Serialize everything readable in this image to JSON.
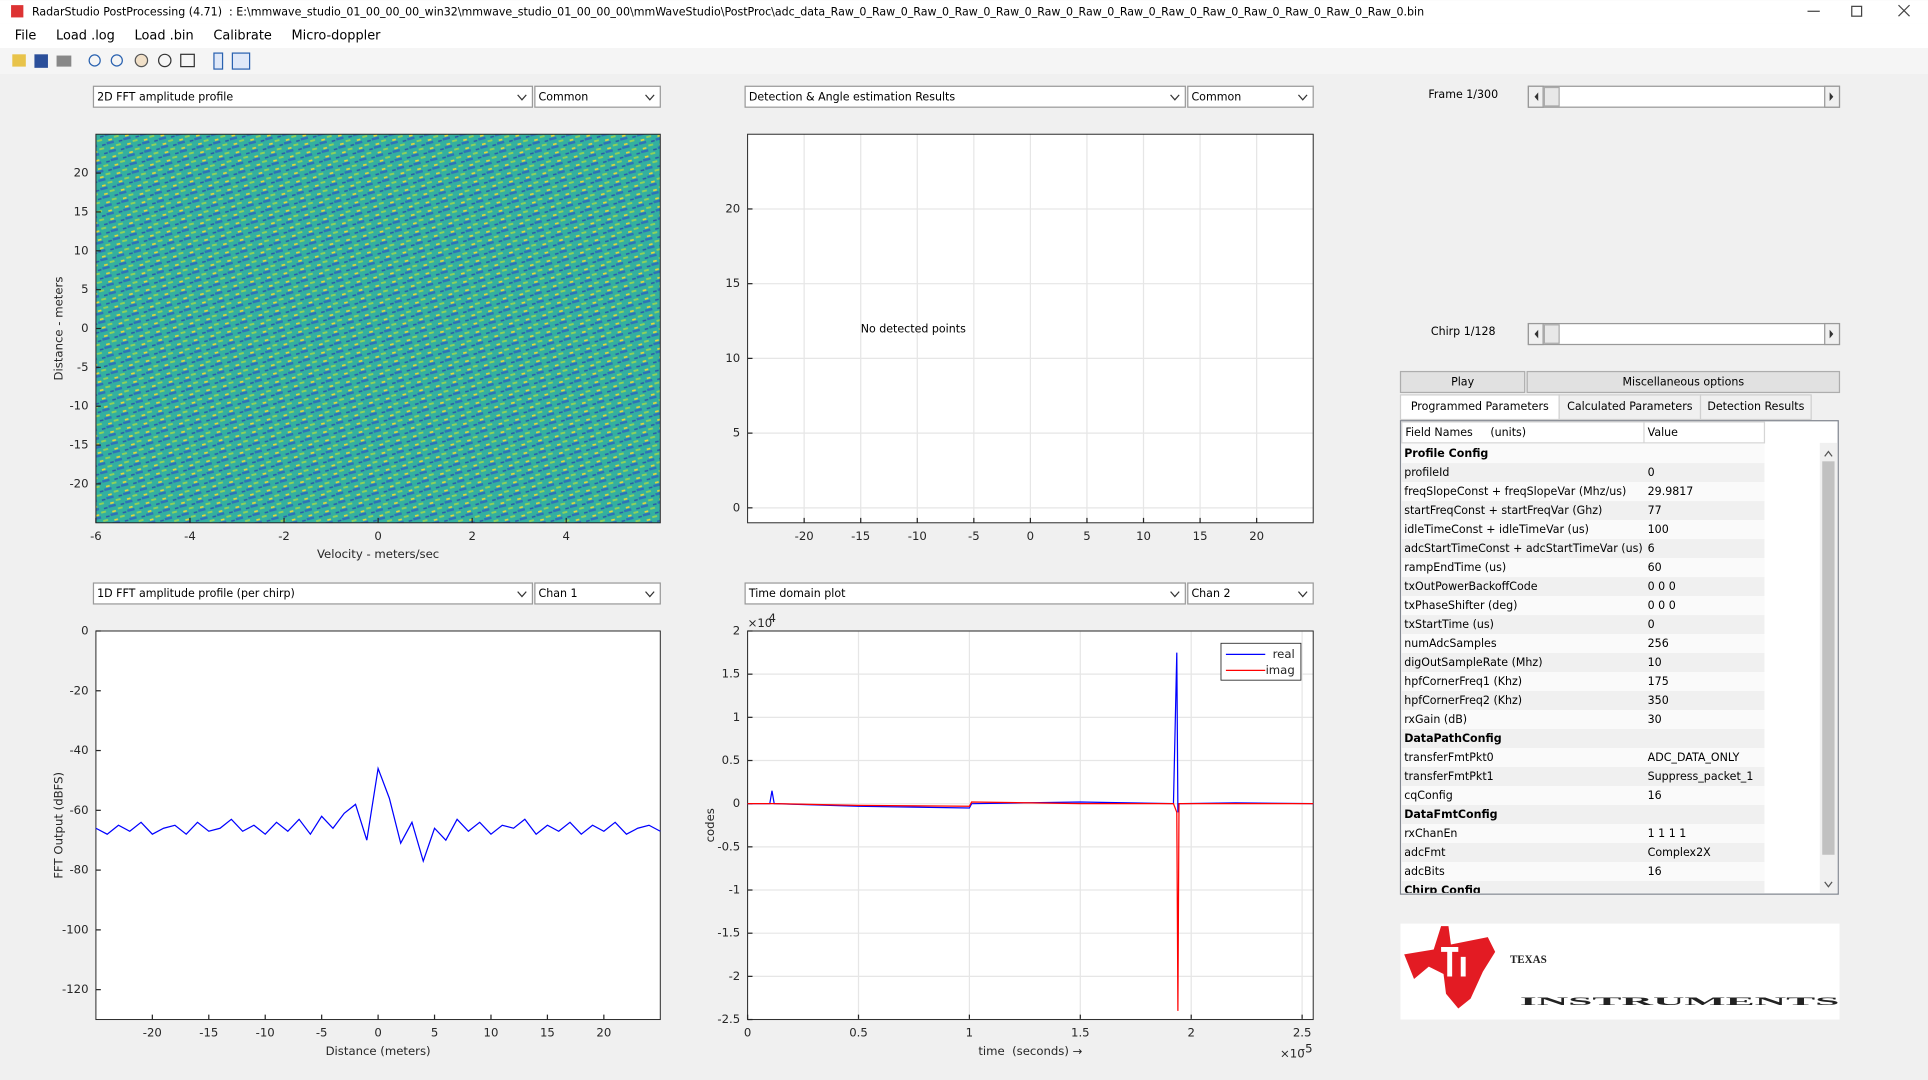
{
  "window": {
    "title": "RadarStudio PostProcessing (4.71)  : E:\\mmwave_studio_01_00_00_00_win32\\mmwave_studio_01_00_00_00\\mmWaveStudio\\PostProc\\adc_data_Raw_0_Raw_0_Raw_0_Raw_0_Raw_0_Raw_0_Raw_0_Raw_0_Raw_0_Raw_0_Raw_0_Raw_0_Raw_0_Raw_0.bin"
  },
  "menu": [
    "File",
    "Load .log",
    "Load .bin",
    "Calibrate",
    "Micro-doppler"
  ],
  "plots": [
    {
      "type": "heatmap",
      "selector": "2D FFT amplitude profile",
      "option": "Common",
      "xlabel": "Velocity - meters/sec",
      "ylabel": "Distance - meters",
      "xlim": [
        -6,
        6
      ],
      "ylim": [
        -25,
        25
      ],
      "xticks": [
        -6,
        -4,
        -2,
        0,
        2,
        4
      ],
      "yticks": [
        -20,
        -15,
        -10,
        -5,
        0,
        5,
        10,
        15,
        20
      ],
      "grid": false
    },
    {
      "type": "scatter",
      "selector": "Detection & Angle estimation Results",
      "option": "Common",
      "annotation": "No detected points",
      "xlim": [
        -25,
        25
      ],
      "ylim": [
        -1,
        25
      ],
      "xticks": [
        -20,
        -15,
        -10,
        -5,
        0,
        5,
        10,
        15,
        20
      ],
      "yticks": [
        0,
        5,
        10,
        15,
        20
      ],
      "grid": true
    },
    {
      "type": "line",
      "selector": "1D FFT amplitude profile (per chirp)",
      "option": "Chan 1",
      "xlabel": "Distance (meters)",
      "ylabel": "FFT Output (dBFS)",
      "xlim": [
        -25,
        25
      ],
      "ylim": [
        -130,
        0
      ],
      "xticks": [
        -20,
        -15,
        -10,
        -5,
        0,
        5,
        10,
        15,
        20
      ],
      "yticks": [
        -120,
        -100,
        -80,
        -60,
        -40,
        -20,
        0
      ],
      "grid": false,
      "x": [
        -25,
        -24,
        -23,
        -22,
        -21,
        -20,
        -19,
        -18,
        -17,
        -16,
        -15,
        -14,
        -13,
        -12,
        -11,
        -10,
        -9,
        -8,
        -7,
        -6,
        -5,
        -4,
        -3,
        -2,
        -1,
        0,
        1,
        2,
        3,
        4,
        5,
        6,
        7,
        8,
        9,
        10,
        11,
        12,
        13,
        14,
        15,
        16,
        17,
        18,
        19,
        20,
        21,
        22,
        23,
        24,
        25
      ],
      "series": [
        {
          "color": "#0000ff",
          "values": [
            -66,
            -68,
            -65,
            -67,
            -64,
            -68,
            -66,
            -65,
            -68,
            -64,
            -67,
            -66,
            -63,
            -67,
            -65,
            -68,
            -64,
            -67,
            -63,
            -68,
            -62,
            -66,
            -61,
            -58,
            -70,
            -46,
            -56,
            -71,
            -64,
            -77,
            -66,
            -70,
            -63,
            -67,
            -64,
            -68,
            -65,
            -66,
            -63,
            -68,
            -65,
            -67,
            -64,
            -68,
            -65,
            -67,
            -64,
            -68,
            -66,
            -65,
            -67
          ]
        }
      ]
    },
    {
      "type": "line",
      "selector": "Time domain plot",
      "option": "Chan 2",
      "xlabel": "time  (seconds) →",
      "ylabel": "codes",
      "x_multiplier": "×10",
      "x_power": "-5",
      "y_multiplier": "×10",
      "y_power": "4",
      "xlim": [
        0,
        2.55
      ],
      "ylim": [
        -2.5,
        2
      ],
      "xticks": [
        0,
        0.5,
        1,
        1.5,
        2,
        2.5
      ],
      "yticks": [
        -2.5,
        -2,
        -1.5,
        -1,
        -0.5,
        0,
        0.5,
        1,
        1.5,
        2
      ],
      "grid": true,
      "legend": "upper right",
      "x": [
        0,
        0.1,
        0.11,
        0.12,
        0.5,
        1,
        1.01,
        1.5,
        1.92,
        1.935,
        1.94,
        1.945,
        1.96,
        2.2,
        2.55
      ],
      "series": [
        {
          "name": "real",
          "color": "#0000ff",
          "values": [
            0,
            0,
            0.15,
            0,
            -0.03,
            -0.05,
            0,
            0.02,
            0,
            1.75,
            -0.1,
            0,
            0,
            0.01,
            0
          ]
        },
        {
          "name": "imag",
          "color": "#ff0000",
          "values": [
            0,
            0,
            0,
            0,
            -0.02,
            -0.03,
            0.02,
            0,
            0,
            -0.1,
            -2.4,
            0,
            0,
            0,
            0
          ]
        }
      ]
    }
  ],
  "controls": {
    "frame_label": "Frame 1/300",
    "chirp_label": "Chirp 1/128",
    "play": "Play",
    "misc": "Miscellaneous options",
    "tabs": [
      "Programmed Parameters",
      "Calculated Parameters",
      "Detection Results"
    ]
  },
  "table": {
    "header": [
      "Field Names     (units)",
      "Value"
    ],
    "rows": [
      [
        "Profile Config"
      ],
      [
        "profileId",
        "0"
      ],
      [
        "freqSlopeConst + freqSlopeVar (Mhz/us)",
        "29.9817"
      ],
      [
        "startFreqConst + startFreqVar (Ghz)",
        "77"
      ],
      [
        "idleTimeConst + idleTimeVar (us)",
        "100"
      ],
      [
        "adcStartTimeConst + adcStartTimeVar (us)",
        "6"
      ],
      [
        "rampEndTime (us)",
        "60"
      ],
      [
        "txOutPowerBackoffCode",
        "0 0 0"
      ],
      [
        "txPhaseShifter (deg)",
        "0 0 0"
      ],
      [
        "txStartTime (us)",
        "0"
      ],
      [
        "numAdcSamples",
        "256"
      ],
      [
        "digOutSampleRate (Mhz)",
        "10"
      ],
      [
        "hpfCornerFreq1 (Khz)",
        "175"
      ],
      [
        "hpfCornerFreq2 (Khz)",
        "350"
      ],
      [
        "rxGain (dB)",
        "30"
      ],
      [
        "DataPathConfig"
      ],
      [
        "transferFmtPkt0",
        "ADC_DATA_ONLY"
      ],
      [
        "transferFmtPkt1",
        "Suppress_packet_1"
      ],
      [
        "cqConfig",
        "16"
      ],
      [
        "DataFmtConfig"
      ],
      [
        "rxChanEn",
        "1 1 1 1"
      ],
      [
        "adcFmt",
        "Complex2X"
      ],
      [
        "adcBits",
        "16"
      ],
      [
        "Chirp Config"
      ]
    ]
  },
  "logo": {
    "line1": "TEXAS",
    "line2": "INSTRUMENTS"
  }
}
